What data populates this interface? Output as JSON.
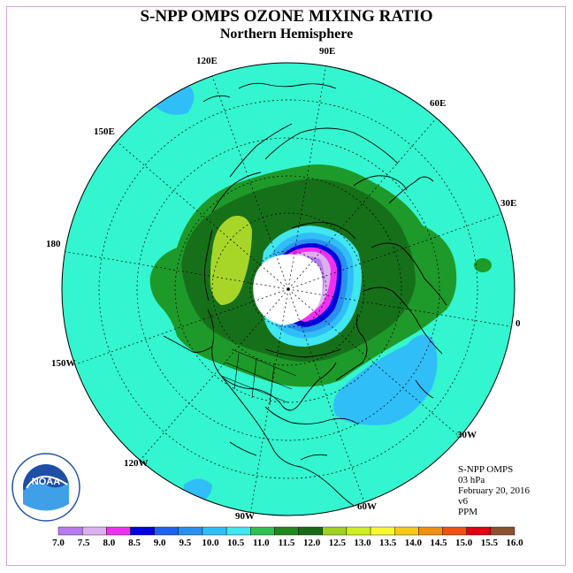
{
  "title": "S-NPP OMPS OZONE MIXING RATIO",
  "subtitle": "Northern Hemisphere",
  "longitude_labels": {
    "e90": "90E",
    "e60": "60E",
    "e30": "30E",
    "zero": "0",
    "w30": "30W",
    "w60": "60W",
    "w90": "90W",
    "w120": "120W",
    "w150": "150W",
    "e180": "180",
    "e150": "150E",
    "e120": "120E"
  },
  "info": {
    "instrument": "S-NPP OMPS",
    "level": "03 hPa",
    "date": "February 20, 2016",
    "version": "v6",
    "units": "PPM"
  },
  "colorbar": {
    "ticks": [
      "7.0",
      "7.5",
      "8.0",
      "8.5",
      "9.0",
      "9.5",
      "10.0",
      "10.5",
      "11.0",
      "11.5",
      "12.0",
      "12.5",
      "13.0",
      "13.5",
      "14.0",
      "14.5",
      "15.0",
      "15.5",
      "16.0"
    ],
    "colors": [
      "#b87af0",
      "#dcb0f0",
      "#f030f0",
      "#0000e0",
      "#1e64f0",
      "#2a90f0",
      "#30bef8",
      "#40e6f0",
      "#30c050",
      "#1e8a1e",
      "#186a18",
      "#a0d020",
      "#d0ee20",
      "#f8f830",
      "#f8c818",
      "#f09010",
      "#f05010",
      "#e00010",
      "#8c5030"
    ]
  },
  "logo": {
    "text": "NOAA",
    "ring_text": "NATIONAL OCEANIC AND ATMOSPHERIC ADMINISTRATION · U.S. DEPARTMENT OF COMMERCE"
  }
}
